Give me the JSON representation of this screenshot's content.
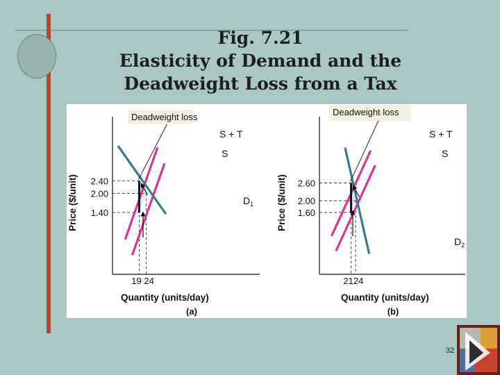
{
  "slide": {
    "title_line1": "Fig. 7.21",
    "title_line2": "Elasticity of Demand and the",
    "title_line3": "Deadweight Loss from a Tax",
    "page_number": "32"
  },
  "colors": {
    "background": "#a9c7c4",
    "supply": "#e0318f",
    "demand": "#2f7d91",
    "deadweight_fill": "#d8eef4",
    "callout_bg": "#f5efe0"
  },
  "chart_data": [
    {
      "type": "line",
      "panel_label": "(a)",
      "xlabel": "Quantity (units/day)",
      "ylabel": "Price ($/unit)",
      "x_ticks": [
        {
          "value": 19,
          "label": "19"
        },
        {
          "value": 24,
          "label": "24"
        }
      ],
      "y_ticks": [
        {
          "value": 2.4,
          "label": "2.40"
        },
        {
          "value": 2.0,
          "label": "2.00"
        },
        {
          "value": 1.4,
          "label": "1.40"
        }
      ],
      "series": [
        {
          "name": "S + T",
          "role": "supply_tax",
          "points": [
            [
              9,
              0.55
            ],
            [
              32,
              3.45
            ]
          ]
        },
        {
          "name": "S",
          "role": "supply",
          "points": [
            [
              14,
              0.05
            ],
            [
              37,
              2.95
            ]
          ]
        },
        {
          "name": "D1",
          "role": "demand",
          "points": [
            [
              4,
              3.5
            ],
            [
              38,
              1.35
            ]
          ]
        }
      ],
      "annotations": {
        "callout": "Deadweight loss",
        "deadweight_triangle": [
          [
            19,
            2.4
          ],
          [
            24,
            2.0
          ],
          [
            19,
            1.4
          ]
        ],
        "tax_wedge": {
          "x": 19,
          "from": 1.4,
          "to": 2.4
        },
        "shift_arrow": "up"
      }
    },
    {
      "type": "line",
      "panel_label": "(b)",
      "xlabel": "Quantity (units/day)",
      "ylabel": "Price ($/unit)",
      "x_ticks": [
        {
          "value": 21,
          "label": "21"
        },
        {
          "value": 24,
          "label": "24"
        }
      ],
      "y_ticks": [
        {
          "value": 2.6,
          "label": "2.60"
        },
        {
          "value": 2.0,
          "label": "2.00"
        },
        {
          "value": 1.6,
          "label": "1.60"
        }
      ],
      "series": [
        {
          "name": "S + T",
          "role": "supply_tax",
          "points": [
            [
              8,
              0.8
            ],
            [
              34,
              3.7
            ]
          ]
        },
        {
          "name": "S",
          "role": "supply",
          "points": [
            [
              11,
              0.3
            ],
            [
              37,
              3.2
            ]
          ]
        },
        {
          "name": "D2",
          "role": "demand",
          "points": [
            [
              17,
              3.8
            ],
            [
              33,
              0.2
            ]
          ]
        }
      ],
      "annotations": {
        "callout": "Deadweight loss",
        "deadweight_triangle": [
          [
            21,
            2.6
          ],
          [
            24,
            2.0
          ],
          [
            21,
            1.6
          ]
        ],
        "tax_wedge": {
          "x": 21,
          "from": 1.6,
          "to": 2.6
        },
        "shift_arrow": "up"
      }
    }
  ]
}
